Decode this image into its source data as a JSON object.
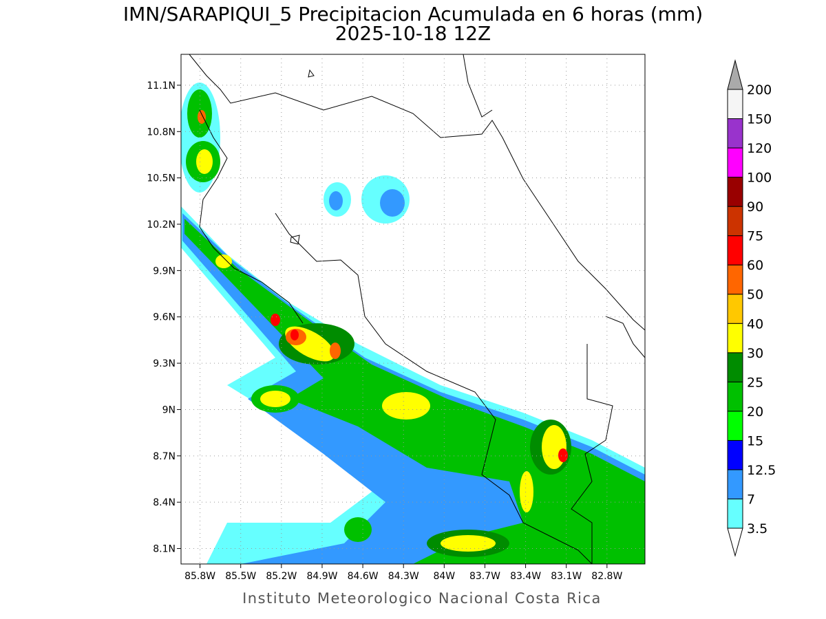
{
  "title": "IMN/SARAPIQUI_5 Precipitacion Acumulada en 6 horas (mm)",
  "subtitle": "2025-10-18 12Z",
  "footer": "Instituto Meteorologico Nacional Costa Rica",
  "map": {
    "xlim": [
      -85.94,
      -82.52
    ],
    "ylim": [
      8.0,
      11.3
    ],
    "xticks": [
      {
        "value": -85.8,
        "label": "85.8W"
      },
      {
        "value": -85.5,
        "label": "85.5W"
      },
      {
        "value": -85.2,
        "label": "85.2W"
      },
      {
        "value": -84.9,
        "label": "84.9W"
      },
      {
        "value": -84.6,
        "label": "84.6W"
      },
      {
        "value": -84.3,
        "label": "84.3W"
      },
      {
        "value": -84.0,
        "label": "84W"
      },
      {
        "value": -83.7,
        "label": "83.7W"
      },
      {
        "value": -83.4,
        "label": "83.4W"
      },
      {
        "value": -83.1,
        "label": "83.1W"
      },
      {
        "value": -82.8,
        "label": "82.8W"
      }
    ],
    "yticks": [
      {
        "value": 8.1,
        "label": "8.1N"
      },
      {
        "value": 8.4,
        "label": "8.4N"
      },
      {
        "value": 8.7,
        "label": "8.7N"
      },
      {
        "value": 9.0,
        "label": "9N"
      },
      {
        "value": 9.3,
        "label": "9.3N"
      },
      {
        "value": 9.6,
        "label": "9.6N"
      },
      {
        "value": 9.9,
        "label": "9.9N"
      },
      {
        "value": 10.2,
        "label": "10.2N"
      },
      {
        "value": 10.5,
        "label": "10.5N"
      },
      {
        "value": 10.8,
        "label": "10.8N"
      },
      {
        "value": 11.1,
        "label": "11.1N"
      }
    ]
  },
  "colorbar": {
    "levels": [
      3.5,
      7,
      12.5,
      15,
      20,
      25,
      30,
      40,
      50,
      60,
      75,
      90,
      100,
      120,
      150,
      200
    ],
    "colors": [
      "#66ffff",
      "#3399ff",
      "#0000ff",
      "#00ff00",
      "#00c000",
      "#008c00",
      "#ffff00",
      "#ffc800",
      "#ff6600",
      "#ff0000",
      "#cc3300",
      "#990000",
      "#ff00ff",
      "#9933cc",
      "#f5f5f5"
    ],
    "over_color": "#aaaaaa",
    "under_color": "#ffffff"
  }
}
